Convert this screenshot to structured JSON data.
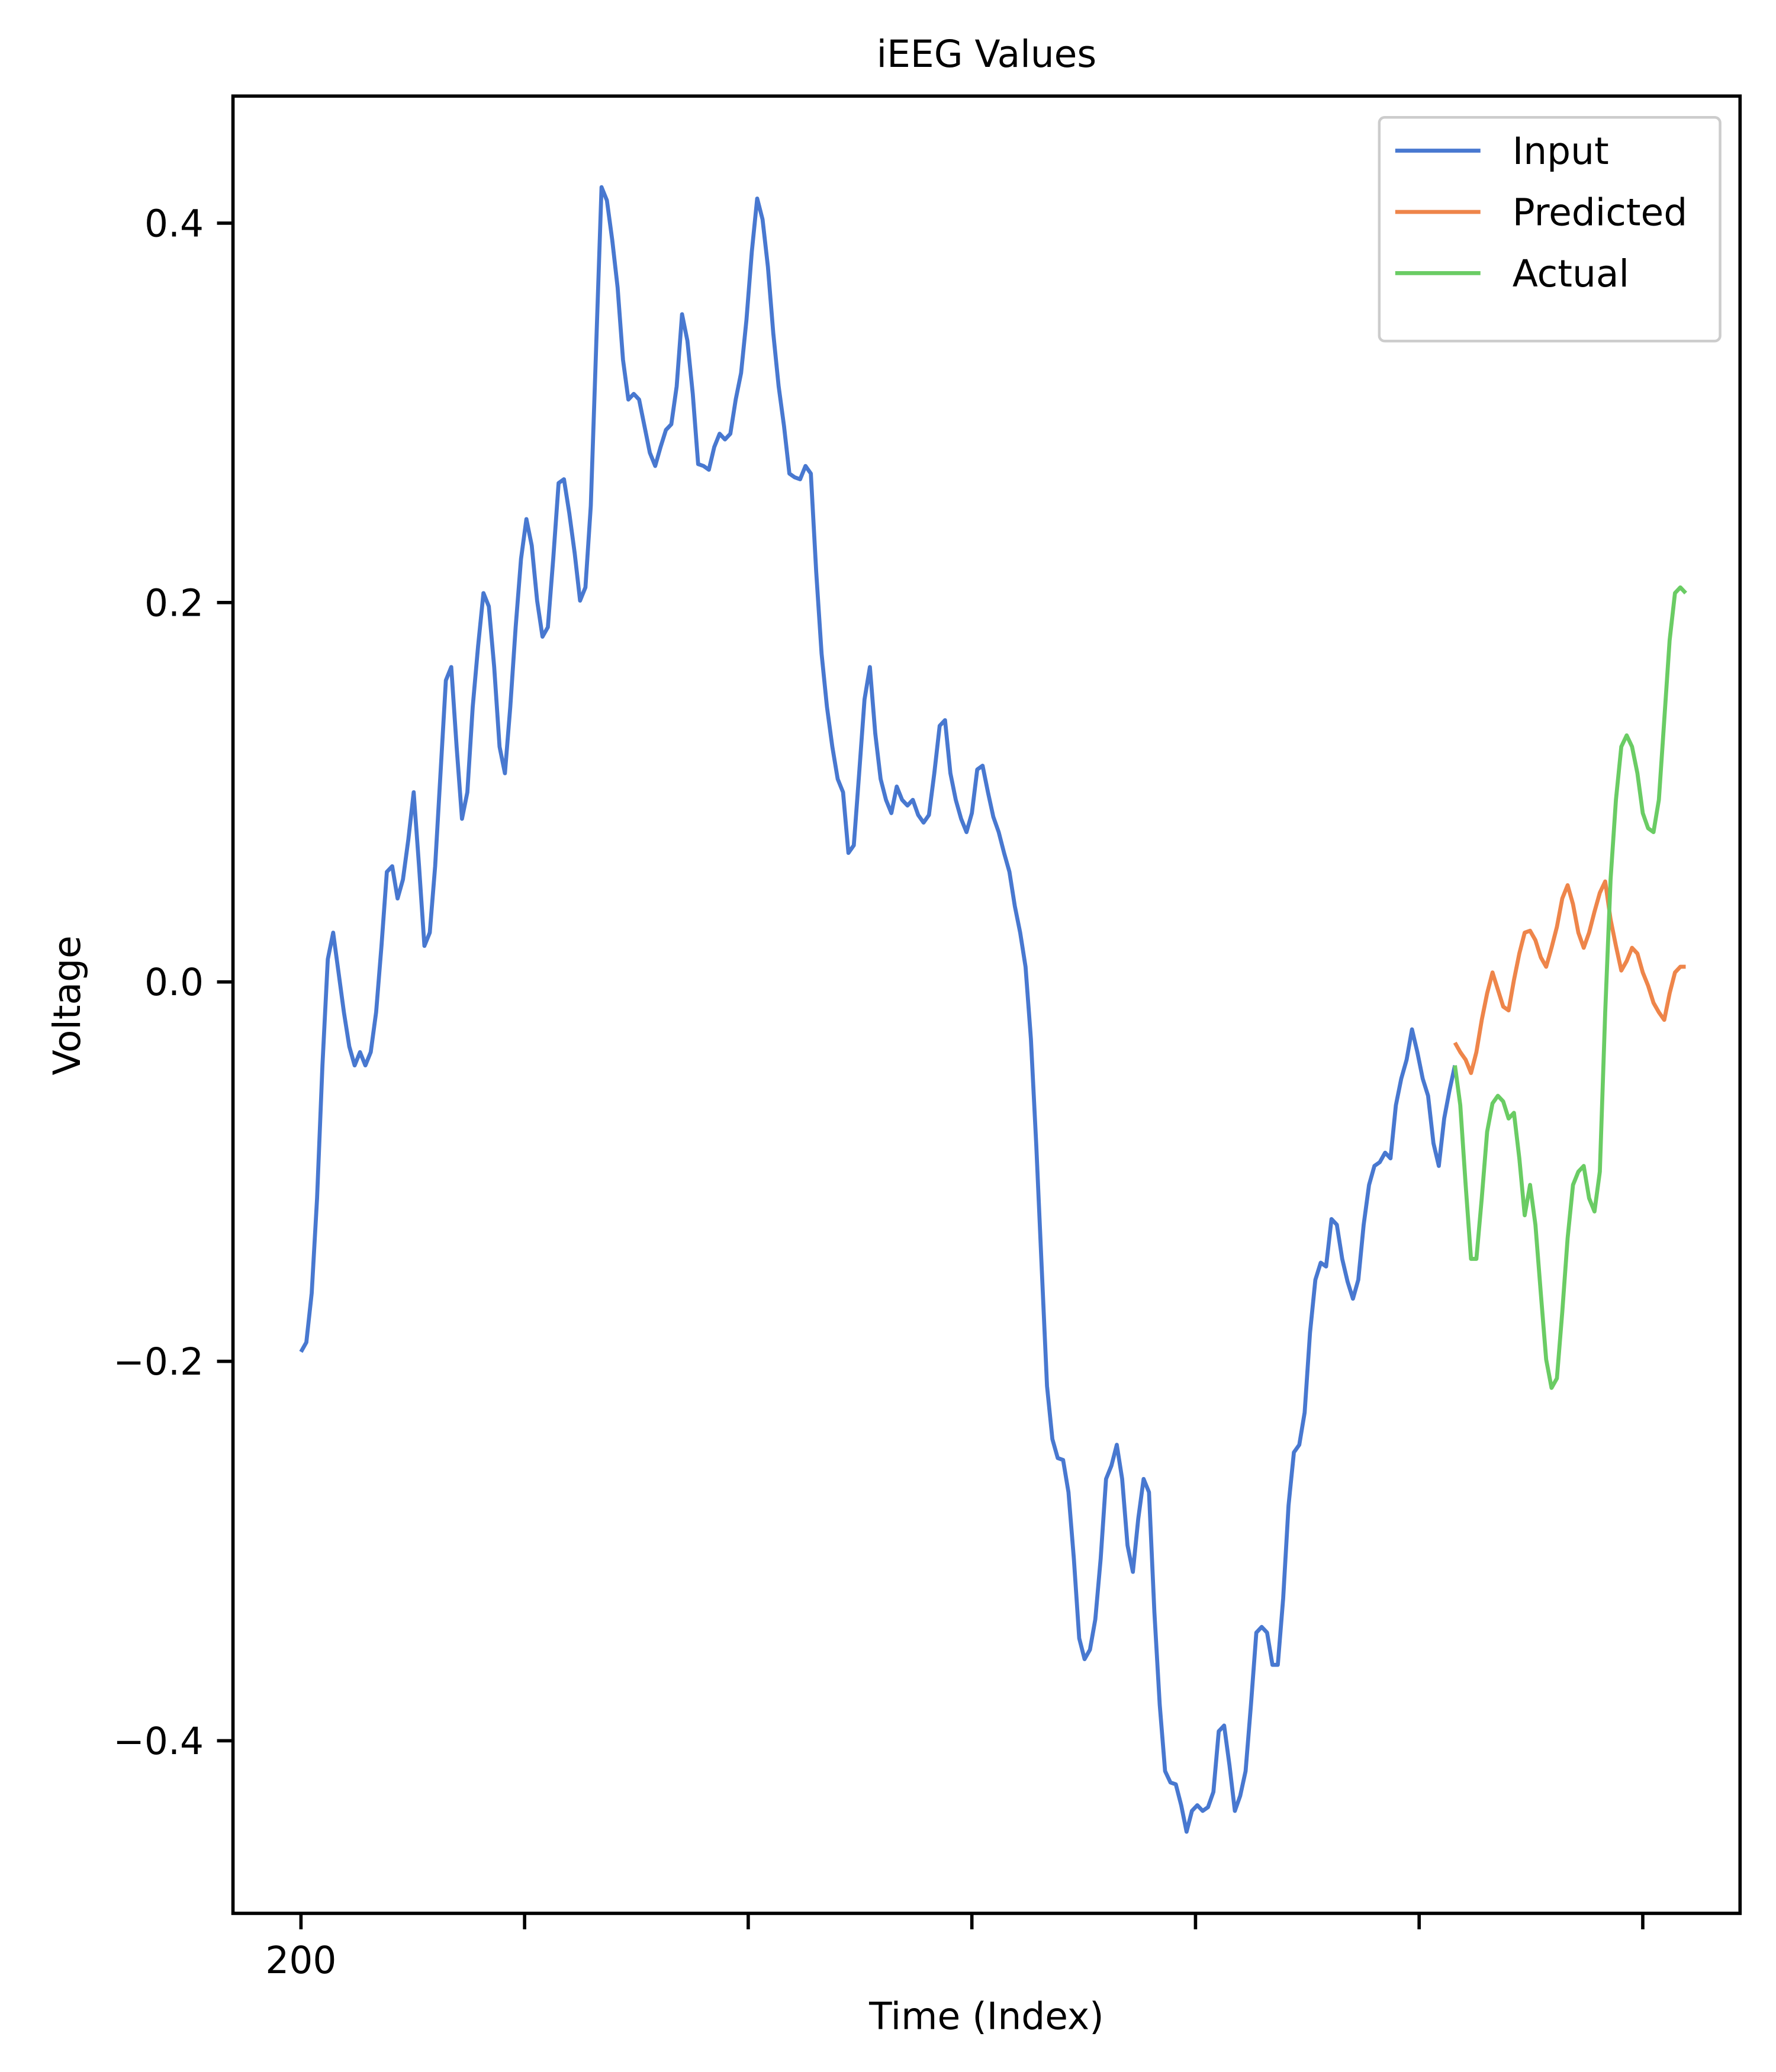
{
  "chart_data": {
    "type": "line",
    "title": "iEEG Values",
    "xlabel": "Time (Index)",
    "ylabel": "Voltage",
    "xlim": [
      169.6,
      843.5
    ],
    "ylim": [
      -0.491,
      0.467
    ],
    "xticks": [
      200,
      {
        "value": 300,
        "label": null
      },
      {
        "value": 400,
        "label": null
      },
      {
        "value": 500,
        "label": null
      },
      {
        "value": 600,
        "label": null
      },
      {
        "value": 700,
        "label": null
      },
      {
        "value": 800,
        "label": null
      }
    ],
    "yticks": [
      {
        "value": -0.4,
        "label": "−0.4"
      },
      {
        "value": -0.2,
        "label": "−0.2"
      },
      {
        "value": 0,
        "label": "0.0"
      },
      {
        "value": 0.2,
        "label": "0.2"
      },
      {
        "value": 0.4,
        "label": "0.4"
      }
    ],
    "grid": false,
    "legend": "upper right",
    "series": [
      {
        "name": "Input",
        "color": "#4878d0",
        "x": [
          200,
          202.4,
          204.8,
          207.2,
          209.6,
          212,
          214.4,
          216.8,
          219.2,
          221.6,
          224,
          226.4,
          228.8,
          231.2,
          233.6,
          236,
          238.4,
          240.8,
          243.2,
          245.6,
          248,
          250.4,
          252.8,
          255.2,
          257.6,
          260,
          262.4,
          264.8,
          267.2,
          269.6,
          272,
          274.4,
          276.8,
          279.2,
          281.6,
          284,
          286.4,
          288.8,
          291.2,
          293.6,
          296,
          298.4,
          300.8,
          303.2,
          305.6,
          308,
          310.4,
          312.8,
          315.2,
          317.6,
          320,
          322.4,
          324.8,
          327.2,
          329.6,
          332,
          334.4,
          336.8,
          339.2,
          341.6,
          344,
          346.4,
          348.8,
          351.2,
          353.6,
          356,
          358.4,
          360.8,
          363.2,
          365.6,
          368,
          370.4,
          372.8,
          375.2,
          377.6,
          380,
          382.4,
          384.8,
          387.2,
          389.6,
          392,
          394.4,
          396.8,
          399.2,
          401.6,
          404,
          406.4,
          408.8,
          411.2,
          413.6,
          416,
          418.4,
          420.8,
          423.2,
          425.6,
          428,
          430.4,
          432.8,
          435.2,
          437.6,
          440,
          442.4,
          444.8,
          447.2,
          449.6,
          452,
          454.4,
          456.8,
          459.2,
          461.6,
          464,
          466.4,
          468.8,
          471.2,
          473.6,
          476,
          478.4,
          480.8,
          483.2,
          485.6,
          488,
          490.4,
          492.8,
          495.2,
          497.6,
          500,
          502.4,
          504.8,
          507.2,
          509.6,
          512,
          514.4,
          516.8,
          519.2,
          521.6,
          524,
          526.4,
          528.8,
          531.2,
          533.6,
          536,
          538.4,
          540.8,
          543.2,
          545.6,
          548,
          550.4,
          552.8,
          555.2,
          557.6,
          560,
          562.4,
          564.8,
          567.2,
          569.6,
          572,
          574.4,
          576.8,
          579.2,
          581.6,
          584,
          586.4,
          588.8,
          591.2,
          593.6,
          596,
          598.4,
          600.8,
          603.2,
          605.6,
          608,
          610.4,
          612.8,
          615.2,
          617.6,
          620,
          622.4,
          624.8,
          627.2,
          629.6,
          632,
          634.4,
          636.8,
          639.2,
          641.6,
          644,
          646.4,
          648.8,
          651.2,
          653.6,
          656,
          658.4,
          660.8,
          663.2,
          665.6,
          668,
          670.4,
          672.8,
          675.2,
          677.6,
          680,
          682.4,
          684.8,
          687.2,
          689.6,
          692,
          694.4,
          696.8,
          699.2,
          701.6,
          704,
          706.4,
          708.8,
          711.2,
          713.6,
          716
        ],
        "values": [
          -0.195,
          -0.19,
          -0.164,
          -0.114,
          -0.044,
          0.012,
          0.026,
          0.005,
          -0.016,
          -0.034,
          -0.044,
          -0.037,
          -0.044,
          -0.037,
          -0.016,
          0.019,
          0.058,
          0.061,
          0.044,
          0.054,
          0.075,
          0.1,
          0.061,
          0.019,
          0.026,
          0.061,
          0.11,
          0.159,
          0.166,
          0.124,
          0.086,
          0.1,
          0.145,
          0.177,
          0.205,
          0.198,
          0.166,
          0.124,
          0.11,
          0.145,
          0.187,
          0.223,
          0.244,
          0.23,
          0.201,
          0.182,
          0.187,
          0.223,
          0.263,
          0.265,
          0.247,
          0.226,
          0.201,
          0.208,
          0.251,
          0.335,
          0.419,
          0.412,
          0.391,
          0.366,
          0.328,
          0.307,
          0.31,
          0.307,
          0.293,
          0.279,
          0.272,
          0.282,
          0.291,
          0.294,
          0.314,
          0.352,
          0.338,
          0.31,
          0.273,
          0.272,
          0.27,
          0.282,
          0.289,
          0.286,
          0.289,
          0.307,
          0.321,
          0.349,
          0.385,
          0.413,
          0.402,
          0.377,
          0.342,
          0.314,
          0.293,
          0.268,
          0.266,
          0.265,
          0.272,
          0.268,
          0.216,
          0.173,
          0.145,
          0.124,
          0.107,
          0.1,
          0.068,
          0.072,
          0.11,
          0.149,
          0.166,
          0.131,
          0.107,
          0.096,
          0.089,
          0.103,
          0.096,
          0.093,
          0.096,
          0.088,
          0.084,
          0.088,
          0.11,
          0.135,
          0.138,
          0.11,
          0.096,
          0.086,
          0.079,
          0.089,
          0.112,
          0.114,
          0.1,
          0.087,
          0.079,
          0.068,
          0.058,
          0.04,
          0.026,
          0.008,
          -0.03,
          -0.086,
          -0.15,
          -0.213,
          -0.241,
          -0.251,
          -0.252,
          -0.269,
          -0.304,
          -0.346,
          -0.357,
          -0.352,
          -0.336,
          -0.304,
          -0.262,
          -0.255,
          -0.244,
          -0.262,
          -0.297,
          -0.311,
          -0.283,
          -0.262,
          -0.269,
          -0.332,
          -0.381,
          -0.416,
          -0.422,
          -0.423,
          -0.434,
          -0.448,
          -0.437,
          -0.434,
          -0.437,
          -0.435,
          -0.427,
          -0.395,
          -0.392,
          -0.413,
          -0.437,
          -0.429,
          -0.416,
          -0.381,
          -0.343,
          -0.34,
          -0.343,
          -0.36,
          -0.36,
          -0.325,
          -0.276,
          -0.248,
          -0.244,
          -0.227,
          -0.185,
          -0.157,
          -0.148,
          -0.15,
          -0.125,
          -0.128,
          -0.146,
          -0.158,
          -0.167,
          -0.157,
          -0.128,
          -0.107,
          -0.097,
          -0.095,
          -0.09,
          -0.093,
          -0.065,
          -0.051,
          -0.041,
          -0.025,
          -0.037,
          -0.051,
          -0.06,
          -0.085,
          -0.097,
          -0.072,
          -0.057,
          -0.044
        ]
      },
      {
        "name": "Predicted",
        "color": "#ee854a",
        "x": [
          716,
          718.4,
          720.8,
          723.2,
          725.6,
          728,
          730.4,
          732.8,
          735.2,
          737.6,
          740,
          742.4,
          744.8,
          747.2,
          749.6,
          752,
          754.4,
          756.8,
          759.2,
          761.6,
          764,
          766.4,
          768.8,
          771.2,
          773.6,
          776,
          778.4,
          780.8,
          783.2,
          785.6,
          788,
          790.4,
          792.8,
          795.2,
          797.6,
          800,
          802.4,
          804.8,
          807.2,
          809.6,
          812,
          814.4,
          816.8,
          819.2
        ],
        "values": [
          -0.032,
          -0.037,
          -0.041,
          -0.048,
          -0.037,
          -0.02,
          -0.006,
          0.005,
          -0.004,
          -0.013,
          -0.015,
          0.001,
          0.015,
          0.026,
          0.027,
          0.022,
          0.013,
          0.008,
          0.018,
          0.029,
          0.044,
          0.051,
          0.041,
          0.026,
          0.018,
          0.026,
          0.037,
          0.047,
          0.053,
          0.033,
          0.019,
          0.006,
          0.011,
          0.018,
          0.015,
          0.005,
          -0.002,
          -0.011,
          -0.016,
          -0.02,
          -0.006,
          0.005,
          0.008,
          0.008
        ]
      },
      {
        "name": "Actual",
        "color": "#6acc64",
        "x": [
          716,
          718.4,
          720.8,
          723.2,
          725.6,
          728,
          730.4,
          732.8,
          735.2,
          737.6,
          740,
          742.4,
          744.8,
          747.2,
          749.6,
          752,
          754.4,
          756.8,
          759.2,
          761.6,
          764,
          766.4,
          768.8,
          771.2,
          773.6,
          776,
          778.4,
          780.8,
          783.2,
          785.6,
          788,
          790.4,
          792.8,
          795.2,
          797.6,
          800,
          802.4,
          804.8,
          807.2,
          809.6,
          812,
          814.4,
          816.8,
          819.2
        ],
        "values": [
          -0.044,
          -0.065,
          -0.107,
          -0.146,
          -0.146,
          -0.114,
          -0.079,
          -0.064,
          -0.06,
          -0.063,
          -0.072,
          -0.069,
          -0.093,
          -0.123,
          -0.107,
          -0.128,
          -0.164,
          -0.199,
          -0.214,
          -0.209,
          -0.174,
          -0.135,
          -0.107,
          -0.1,
          -0.097,
          -0.114,
          -0.121,
          -0.1,
          -0.016,
          0.054,
          0.096,
          0.124,
          0.13,
          0.124,
          0.11,
          0.089,
          0.081,
          0.079,
          0.096,
          0.138,
          0.18,
          0.205,
          0.208,
          0.205
        ]
      }
    ]
  }
}
